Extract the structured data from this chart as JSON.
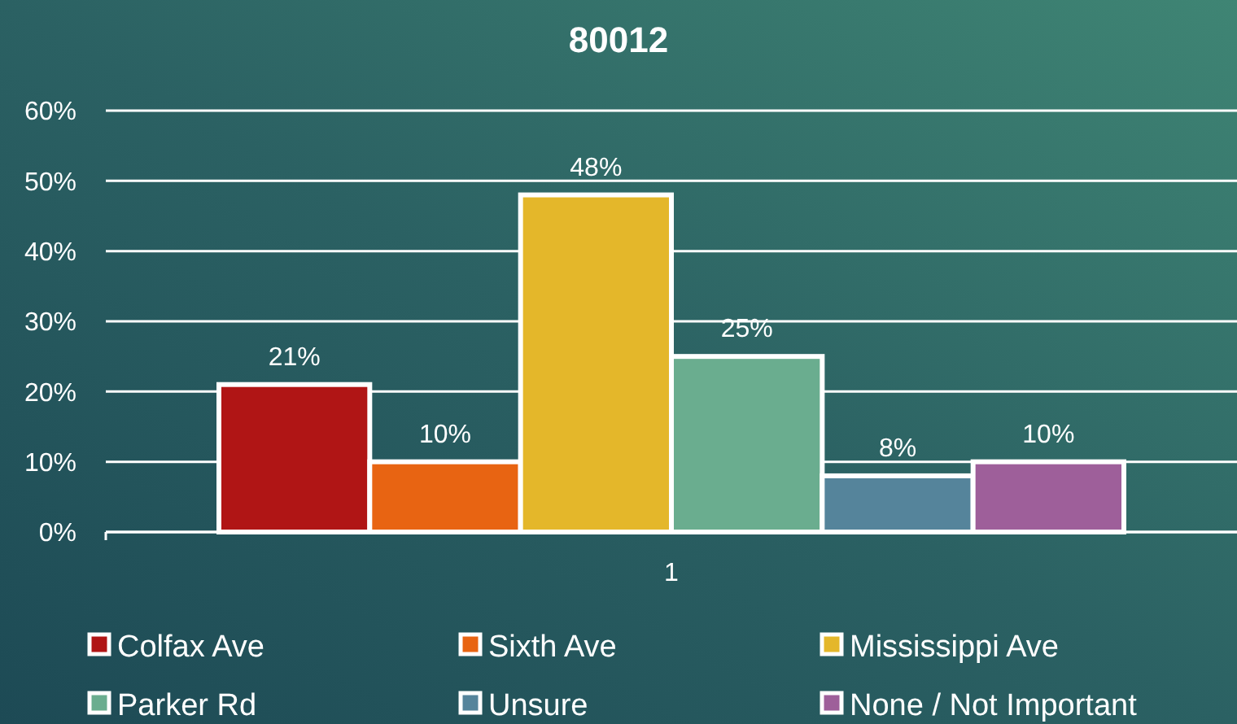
{
  "chart_data": {
    "type": "bar",
    "title": "80012",
    "categories": [
      "1"
    ],
    "series": [
      {
        "name": "Colfax Ave",
        "color": "#b01515",
        "values": [
          21
        ],
        "value_labels": [
          "21%"
        ]
      },
      {
        "name": "Sixth Ave",
        "color": "#e86412",
        "values": [
          10
        ],
        "value_labels": [
          "10%"
        ]
      },
      {
        "name": "Mississippi Ave",
        "color": "#e4b72a",
        "values": [
          48
        ],
        "value_labels": [
          "48%"
        ]
      },
      {
        "name": "Parker Rd",
        "color": "#6aad8f",
        "values": [
          25
        ],
        "value_labels": [
          "25%"
        ]
      },
      {
        "name": "Unsure",
        "color": "#55849b",
        "values": [
          8
        ],
        "value_labels": [
          "8%"
        ]
      },
      {
        "name": "None / Not Important",
        "color": "#9e5f9a",
        "values": [
          10
        ],
        "value_labels": [
          "10%"
        ]
      }
    ],
    "ylim": [
      0,
      60
    ],
    "yticks": [
      {
        "value": 0,
        "label": "0%"
      },
      {
        "value": 10,
        "label": "10%"
      },
      {
        "value": 20,
        "label": "20%"
      },
      {
        "value": 30,
        "label": "30%"
      },
      {
        "value": 40,
        "label": "40%"
      },
      {
        "value": 50,
        "label": "50%"
      },
      {
        "value": 60,
        "label": "60%"
      }
    ],
    "grid": "y",
    "legend": "bottom"
  }
}
